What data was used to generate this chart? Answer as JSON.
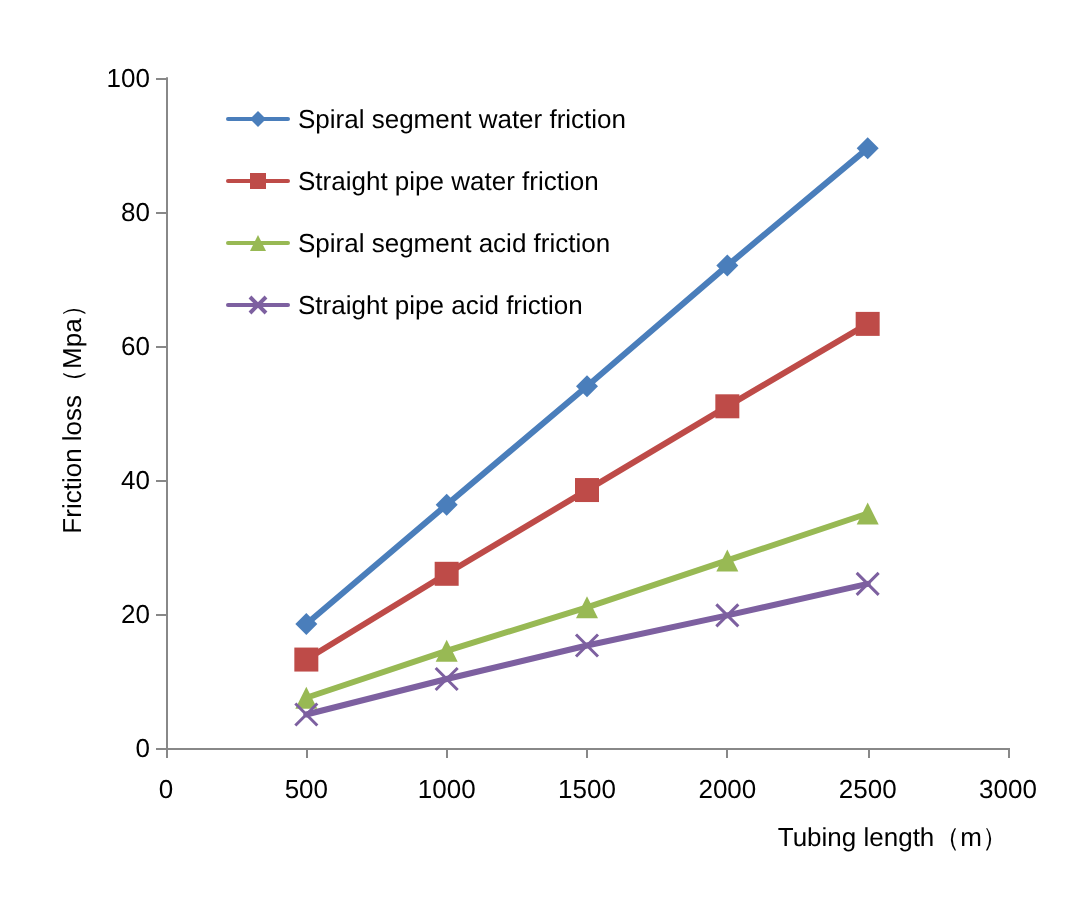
{
  "chart_data": {
    "type": "line",
    "xlabel": "Tubing length（m）",
    "ylabel": "Friction loss（Mpa）",
    "x": [
      500,
      1000,
      1500,
      2000,
      2500
    ],
    "xlim": [
      0,
      3000
    ],
    "xticks": [
      0,
      500,
      1000,
      1500,
      2000,
      2500,
      3000
    ],
    "ylim": [
      0,
      100
    ],
    "yticks": [
      0,
      20,
      40,
      60,
      80,
      100
    ],
    "grid": false,
    "legend": "top left",
    "line_style": "solid",
    "series": [
      {
        "name": "Spiral segment water friction",
        "color": "#4a7ebb",
        "marker": "diamond",
        "values": [
          18.5,
          36.3,
          54,
          72,
          89.5
        ]
      },
      {
        "name": "Straight pipe water friction",
        "color": "#be4b48",
        "marker": "square",
        "values": [
          13.2,
          26,
          38.5,
          51,
          63.3
        ]
      },
      {
        "name": "Spiral segment acid friction",
        "color": "#98b954",
        "marker": "triangle",
        "values": [
          7.5,
          14.5,
          21,
          28,
          35
        ]
      },
      {
        "name": "Straight pipe acid friction",
        "color": "#7d60a0",
        "marker": "cross",
        "values": [
          5,
          10.3,
          15.3,
          19.8,
          24.5
        ]
      }
    ]
  }
}
